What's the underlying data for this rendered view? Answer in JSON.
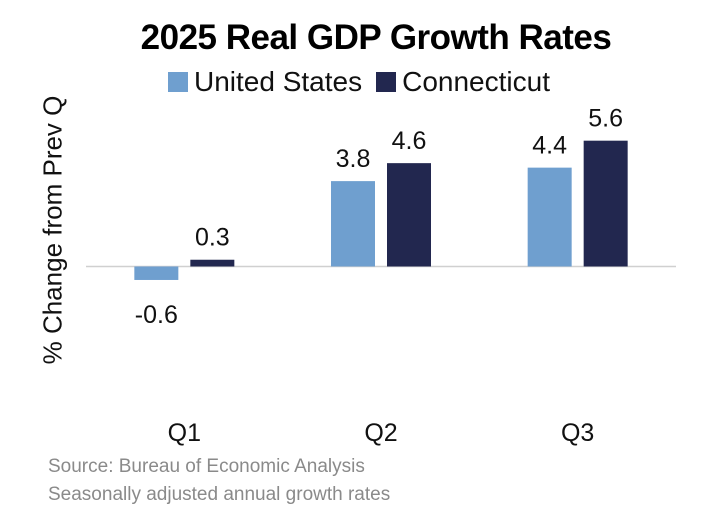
{
  "chart_data": {
    "type": "bar",
    "title": "2025 Real GDP Growth Rates",
    "ylabel": "% Change from Prev Q",
    "xlabel": "",
    "categories": [
      "Q1",
      "Q2",
      "Q3"
    ],
    "series": [
      {
        "name": "United States",
        "values": [
          -0.6,
          3.8,
          4.4
        ],
        "color": "#6f9fcf"
      },
      {
        "name": "Connecticut",
        "values": [
          0.3,
          4.6,
          5.6
        ],
        "color": "#22274f"
      }
    ],
    "ylim": [
      -6.3,
      7.5
    ],
    "legend_position": "top",
    "grid": false
  },
  "notes": {
    "source": "Source: Bureau of Economic Analysis",
    "description": "Seasonally adjusted annual growth rates"
  }
}
